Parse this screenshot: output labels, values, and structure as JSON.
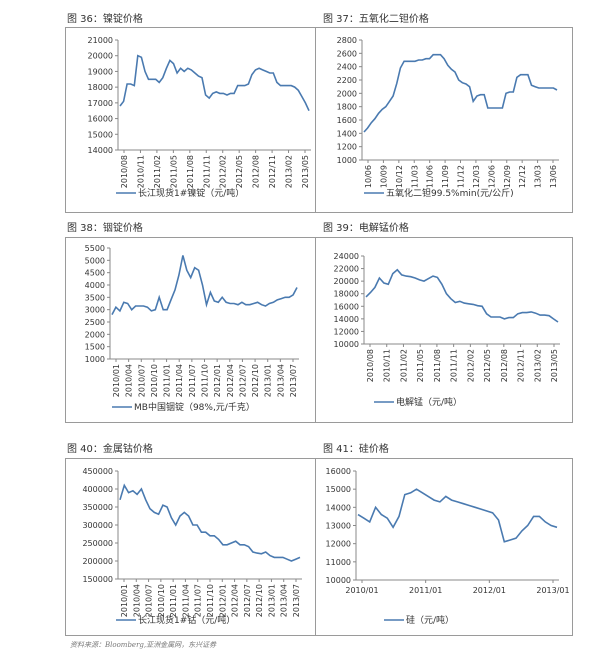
{
  "figures": [
    {
      "title": "图 36：镍锭价格"
    },
    {
      "title": "图 37：五氧化二钽价格"
    },
    {
      "title": "图 38：铟锭价格"
    },
    {
      "title": "图 39：电解锰价格"
    },
    {
      "title": "图 40：金属钴价格"
    },
    {
      "title": "图 41：硅价格"
    }
  ],
  "source": "资料来源：Bloomberg,亚洲金属网，东兴证券",
  "chart_data": [
    {
      "type": "line",
      "ylim": [
        14000,
        21000
      ],
      "yticks": [
        "21000",
        "20000",
        "19000",
        "18000",
        "17000",
        "16000",
        "15000",
        "14000"
      ],
      "xticks": [
        "2010/08",
        "2010/11",
        "2011/02",
        "2011/05",
        "2011/08",
        "2011/11",
        "2012/02",
        "2012/05",
        "2012/08",
        "2012/11",
        "2013/02",
        "2013/05"
      ],
      "series": [
        {
          "name": "长江现货1#镍锭（元/吨）",
          "color": "#4a7ab0",
          "values": [
            16800,
            17100,
            18200,
            18200,
            18100,
            20000,
            19900,
            19000,
            18500,
            18500,
            18500,
            18300,
            18600,
            19200,
            19700,
            19500,
            18900,
            19200,
            19000,
            19200,
            19100,
            18900,
            18700,
            18600,
            17500,
            17300,
            17600,
            17700,
            17600,
            17600,
            17500,
            17600,
            17600,
            18100,
            18100,
            18100,
            18200,
            18800,
            19100,
            19200,
            19100,
            19000,
            18900,
            18900,
            18300,
            18100,
            18100,
            18100,
            18100,
            18000,
            17800,
            17400,
            17000,
            16500
          ]
        }
      ]
    },
    {
      "type": "line",
      "ylim": [
        1000,
        2800
      ],
      "yticks": [
        "2800",
        "2600",
        "2400",
        "2200",
        "2000",
        "1800",
        "1600",
        "1400",
        "1200",
        "1000"
      ],
      "xticks": [
        "10/06",
        "10/09",
        "10/12",
        "11/03",
        "11/06",
        "11/09",
        "11/12",
        "12/03",
        "12/06",
        "12/09",
        "12/12",
        "13/03",
        "13/06"
      ],
      "series": [
        {
          "name": "五氧化二钽99.5%min(元/公斤)",
          "color": "#4a7ab0",
          "values": [
            1420,
            1480,
            1560,
            1620,
            1700,
            1760,
            1800,
            1880,
            1960,
            2150,
            2380,
            2480,
            2480,
            2480,
            2480,
            2500,
            2500,
            2520,
            2520,
            2580,
            2580,
            2580,
            2520,
            2420,
            2360,
            2320,
            2200,
            2160,
            2140,
            2100,
            1880,
            1960,
            1980,
            1980,
            1780,
            1780,
            1780,
            1780,
            1780,
            2000,
            2020,
            2020,
            2240,
            2280,
            2280,
            2280,
            2120,
            2100,
            2080,
            2080,
            2080,
            2080,
            2080,
            2050
          ]
        }
      ]
    },
    {
      "type": "line",
      "ylim": [
        1000,
        5500
      ],
      "yticks": [
        "5500",
        "5000",
        "4500",
        "4000",
        "3500",
        "3000",
        "2500",
        "2000",
        "1500",
        "1000"
      ],
      "xticks": [
        "2010/01",
        "2010/04",
        "2010/07",
        "2010/10",
        "2011/01",
        "2011/04",
        "2011/07",
        "2011/10",
        "2012/01",
        "2012/04",
        "2012/07",
        "2012/10",
        "2013/01",
        "2013/04",
        "2013/07"
      ],
      "series": [
        {
          "name": "MB中国铟锭（98%,元/千克）",
          "color": "#4a7ab0",
          "values": [
            2800,
            3100,
            2950,
            3300,
            3250,
            3000,
            3150,
            3150,
            3150,
            3100,
            2950,
            3000,
            3500,
            3000,
            3000,
            3400,
            3800,
            4400,
            5200,
            4600,
            4300,
            4700,
            4600,
            4000,
            3200,
            3700,
            3350,
            3300,
            3500,
            3300,
            3250,
            3250,
            3200,
            3300,
            3200,
            3200,
            3250,
            3300,
            3200,
            3150,
            3250,
            3300,
            3400,
            3450,
            3500,
            3500,
            3600,
            3900
          ]
        }
      ]
    },
    {
      "type": "line",
      "ylim": [
        10000,
        24000
      ],
      "yticks": [
        "24000",
        "22000",
        "20000",
        "18000",
        "16000",
        "14000",
        "12000",
        "10000"
      ],
      "xticks": [
        "2010/08",
        "2010/11",
        "2011/02",
        "2011/05",
        "2011/08",
        "2011/11",
        "2012/02",
        "2012/05",
        "2012/08",
        "2012/11",
        "2013/02",
        "2013/05"
      ],
      "series": [
        {
          "name": "电解锰（元/吨）",
          "color": "#4a7ab0",
          "values": [
            17500,
            18200,
            19000,
            20500,
            19700,
            19500,
            21200,
            21800,
            21000,
            20800,
            20700,
            20500,
            20200,
            20000,
            20400,
            20800,
            20600,
            19500,
            18000,
            17200,
            16600,
            16800,
            16500,
            16400,
            16300,
            16100,
            16000,
            14800,
            14300,
            14300,
            14300,
            14000,
            14200,
            14200,
            14800,
            15000,
            15000,
            15100,
            14900,
            14600,
            14600,
            14500,
            14000,
            13500
          ]
        }
      ]
    },
    {
      "type": "line",
      "ylim": [
        150000,
        450000
      ],
      "yticks": [
        "450000",
        "400000",
        "350000",
        "300000",
        "250000",
        "200000",
        "150000"
      ],
      "xticks": [
        "2010/01",
        "2010/04",
        "2010/07",
        "2010/10",
        "2011/01",
        "2011/04",
        "2011/07",
        "2011/10",
        "2012/01",
        "2012/04",
        "2012/07",
        "2012/10",
        "2013/01",
        "2013/04",
        "2013/07"
      ],
      "series": [
        {
          "name": "长江现货1#钴（元/吨）",
          "color": "#4a7ab0",
          "values": [
            370000,
            410000,
            390000,
            395000,
            385000,
            400000,
            370000,
            345000,
            335000,
            330000,
            355000,
            350000,
            320000,
            300000,
            325000,
            335000,
            325000,
            300000,
            300000,
            280000,
            280000,
            270000,
            270000,
            260000,
            245000,
            245000,
            250000,
            255000,
            245000,
            245000,
            240000,
            225000,
            222000,
            220000,
            225000,
            215000,
            210000,
            210000,
            210000,
            205000,
            200000,
            205000,
            210000
          ]
        }
      ]
    },
    {
      "type": "line",
      "ylim": [
        10000,
        16000
      ],
      "yticks": [
        "16000",
        "15000",
        "14000",
        "13000",
        "12000",
        "11000",
        "10000"
      ],
      "xticks": [
        "2010/01",
        "2011/01",
        "2012/01",
        "2013/01"
      ],
      "series": [
        {
          "name": "硅（元/吨）",
          "color": "#4a7ab0",
          "values": [
            13600,
            13400,
            13200,
            14000,
            13600,
            13400,
            12900,
            13500,
            14700,
            14800,
            15000,
            14800,
            14600,
            14400,
            14300,
            14600,
            14400,
            14300,
            14200,
            14100,
            14000,
            13900,
            13800,
            13700,
            13300,
            12100,
            12200,
            12300,
            12700,
            13000,
            13500,
            13500,
            13200,
            13000,
            12900
          ]
        }
      ]
    }
  ]
}
